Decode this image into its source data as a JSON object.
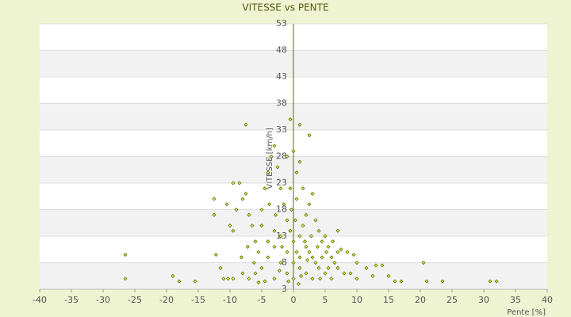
{
  "chart_data": {
    "type": "scatter",
    "title": "VITESSE vs PENTE",
    "xlabel": "Pente [%]",
    "ylabel": "VITESSE [km/h]",
    "x": [
      -26.5,
      -26.5,
      -19,
      -18,
      -15.5,
      -7.5,
      1,
      2.5,
      -0.5,
      20.5,
      21,
      23.5,
      31,
      32,
      17,
      16,
      15,
      14,
      13,
      11.5,
      10,
      12.5,
      9,
      10,
      9.5,
      8.5,
      7.5,
      7,
      -12.5,
      -12.5,
      -12.2,
      -11.5,
      -11,
      -10.3,
      -9.5,
      -9.5,
      -10,
      -10.5,
      -9.5,
      -8.5,
      -7.5,
      -9,
      -8,
      -7,
      -6.5,
      -6,
      -5.5,
      -5,
      -4.5,
      -4,
      -3.5,
      -3,
      -2.5,
      -2,
      -1.5,
      -1,
      -0.5,
      0,
      0.5,
      1,
      1.5,
      2,
      2.5,
      3,
      3.5,
      4,
      4.5,
      5,
      5.5,
      6,
      6.5,
      7,
      -1,
      0,
      0.5,
      1,
      -2,
      -3,
      -4,
      -5,
      -6,
      -7,
      -8,
      -3,
      -1,
      1,
      2,
      3,
      4,
      5,
      6,
      7,
      8,
      3,
      2,
      1,
      -1,
      -2,
      -3,
      -4,
      -5,
      0.5,
      1.5,
      -0.5,
      2.5,
      3.5,
      4.5,
      5.5,
      0,
      0,
      0.3,
      -0.3,
      1.8,
      -1.8,
      2.8,
      -2.8,
      3.8,
      -3.8,
      4.2,
      5.2,
      6.2,
      -6.2,
      -7.2,
      -8.2,
      0.8,
      -0.8,
      1.2,
      -4.5,
      -5.5,
      2.2,
      -2.2
    ],
    "values": [
      9.5,
      5,
      5.5,
      4.5,
      4.5,
      34,
      34,
      32,
      35,
      8,
      4.5,
      4.5,
      4.5,
      4.5,
      4.5,
      4.5,
      5.5,
      7.5,
      7.5,
      7,
      8,
      5.5,
      6,
      5,
      9.5,
      10,
      10.5,
      10,
      20,
      17,
      9.5,
      7,
      5,
      5,
      5,
      14,
      15,
      19,
      23,
      23,
      21,
      18,
      20,
      17,
      15,
      12,
      10,
      18,
      22,
      25,
      28,
      30,
      26,
      22,
      19,
      16,
      14,
      12,
      10,
      13,
      15,
      17,
      19,
      21,
      16,
      14,
      12,
      13,
      11,
      9,
      8,
      14,
      28,
      29,
      25,
      27,
      13,
      11,
      9,
      7,
      6,
      5,
      6,
      5,
      6,
      7,
      6,
      5,
      7,
      6,
      5,
      7,
      6,
      9,
      11,
      9,
      10,
      8,
      14,
      12,
      15,
      20,
      22,
      22,
      10,
      8,
      9,
      7,
      8,
      5,
      16,
      18,
      12,
      11,
      13,
      17,
      11,
      19,
      5,
      10,
      12,
      8,
      11,
      9,
      4,
      4.5,
      5.5,
      4.5,
      4.3,
      8.5,
      6.5
    ],
    "color": "#5a6e00",
    "xlim": [
      -40,
      40
    ],
    "xticks": [
      -40,
      -35,
      -30,
      -25,
      -20,
      -15,
      -10,
      -5,
      0,
      5,
      10,
      15,
      20,
      25,
      30,
      35,
      40
    ],
    "ylim": [
      3,
      53
    ],
    "yticks": [
      3,
      8,
      13,
      18,
      23,
      28,
      33,
      38,
      43,
      48,
      53
    ],
    "grid": true
  }
}
